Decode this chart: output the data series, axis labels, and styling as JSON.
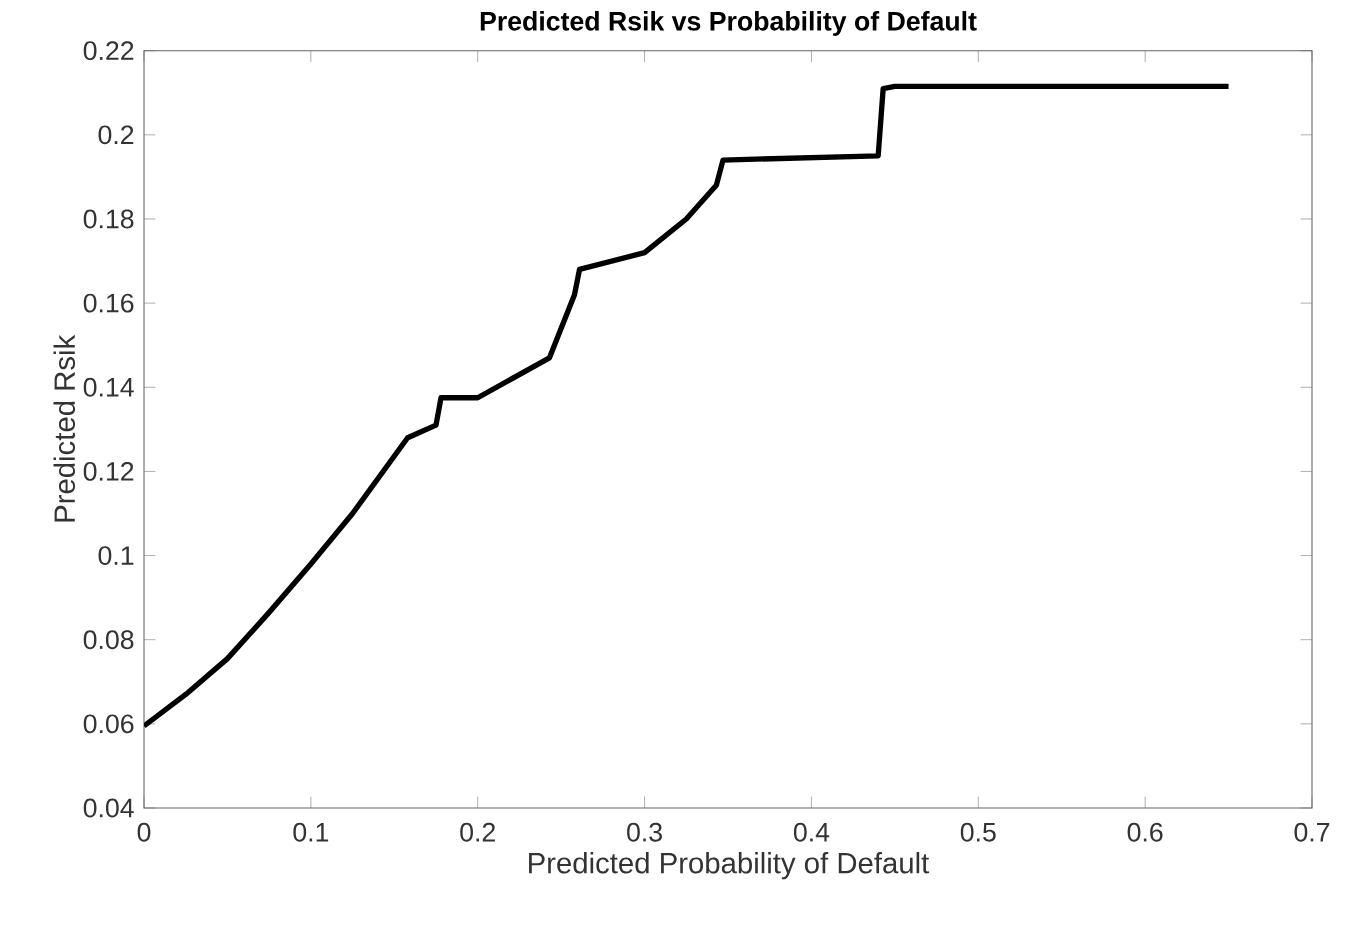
{
  "chart_data": {
    "type": "line",
    "title": "Predicted Rsik vs Probability of Default",
    "xlabel": "Predicted Probability of Default",
    "ylabel": "Predicted Rsik",
    "series": [
      {
        "color": "#000000",
        "x": [
          0,
          0.025,
          0.05,
          0.075,
          0.1,
          0.125,
          0.158,
          0.175,
          0.178,
          0.2,
          0.243,
          0.258,
          0.261,
          0.3,
          0.325,
          0.343,
          0.347,
          0.44,
          0.443,
          0.45,
          0.65
        ],
        "values": [
          0.0595,
          0.067,
          0.0755,
          0.0865,
          0.098,
          0.11,
          0.128,
          0.131,
          0.1375,
          0.1375,
          0.147,
          0.162,
          0.168,
          0.172,
          0.18,
          0.188,
          0.194,
          0.195,
          0.211,
          0.2115,
          0.2115
        ]
      }
    ],
    "xlim": [
      0,
      0.7
    ],
    "ylim": [
      0.04,
      0.22
    ],
    "xticks": [
      0,
      0.1,
      0.2,
      0.3,
      0.4,
      0.5,
      0.6,
      0.7
    ],
    "yticks": [
      0.04,
      0.06,
      0.08,
      0.1,
      0.12,
      0.14,
      0.16,
      0.18,
      0.2,
      0.22
    ],
    "marker": "none",
    "line_style": "solid"
  }
}
